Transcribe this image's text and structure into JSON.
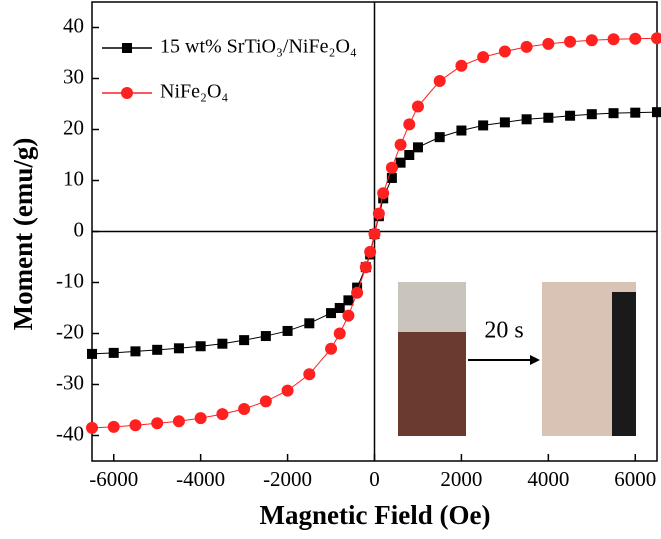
{
  "chart_data": {
    "type": "line",
    "xlabel": "Magnetic Field (Oe)",
    "ylabel": "Moment (emu/g)",
    "annotation": "20 s",
    "x": [
      -6500,
      -6000,
      -5500,
      -5000,
      -4500,
      -4000,
      -3500,
      -3000,
      -2500,
      -2000,
      -1500,
      -1000,
      -800,
      -600,
      -400,
      -200,
      -100,
      0,
      100,
      200,
      400,
      600,
      800,
      1000,
      1500,
      2000,
      2500,
      3000,
      3500,
      4000,
      4500,
      5000,
      5500,
      6000,
      6500
    ],
    "series": [
      {
        "name": "15 wt% SrTiO₃/NiFe₂O₄",
        "color": "#000000",
        "marker": "square",
        "values": [
          -24.0,
          -23.8,
          -23.5,
          -23.2,
          -22.9,
          -22.5,
          -22.0,
          -21.3,
          -20.5,
          -19.5,
          -18.0,
          -16.0,
          -15.0,
          -13.5,
          -11.0,
          -7.0,
          -4.5,
          -0.5,
          3,
          6.5,
          10.5,
          13.5,
          15,
          16.5,
          18.5,
          19.8,
          20.8,
          21.4,
          22.0,
          22.3,
          22.7,
          23.0,
          23.2,
          23.3,
          23.4
        ]
      },
      {
        "name": "NiFe₂O₄",
        "color": "#ff2020",
        "marker": "circle",
        "values": [
          -38.5,
          -38.3,
          -38.0,
          -37.6,
          -37.2,
          -36.6,
          -35.8,
          -34.8,
          -33.3,
          -31.2,
          -28.0,
          -23,
          -20,
          -16.5,
          -12,
          -7,
          -4,
          -0.5,
          3.5,
          7.5,
          12.5,
          17,
          21,
          24.5,
          29.5,
          32.5,
          34.2,
          35.3,
          36.2,
          36.8,
          37.2,
          37.5,
          37.7,
          37.8,
          37.9
        ]
      }
    ],
    "xlim": [
      -6500,
      6500
    ],
    "xticks": [
      -6000,
      -4000,
      -2000,
      0,
      2000,
      4000,
      6000
    ],
    "ylim": [
      -45,
      45
    ],
    "yticks": [
      -40,
      -30,
      -20,
      -10,
      0,
      10,
      20,
      30,
      40
    ]
  }
}
